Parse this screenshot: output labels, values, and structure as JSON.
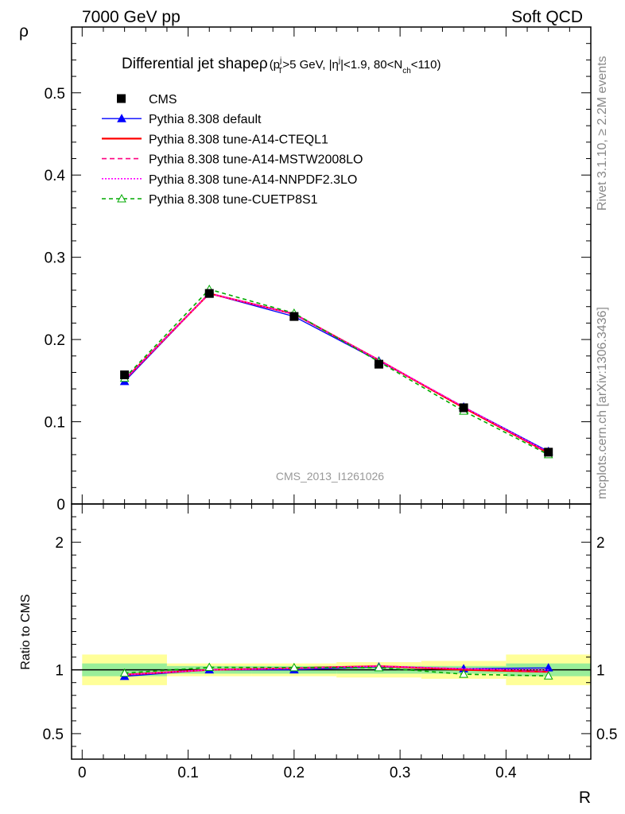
{
  "header": {
    "left": "7000 GeV pp",
    "right": "Soft QCD"
  },
  "side": {
    "rivet": "Rivet 3.1.10, ≥ 2.2M events",
    "mcplots": "mcplots.cern.ch [arXiv:1306.3436]"
  },
  "watermark": "CMS_2013_I1261026",
  "chart_data": {
    "type": "line",
    "title": {
      "main": "Differential jet shape",
      "rho": "ρ",
      "open": "(p",
      "pt_sup": "j",
      "pt_sub": "T",
      "cut1": ">5 GeV, |η",
      "eta_sup": "j",
      "cut2": "|<1.9, 80<N",
      "nch_sub": "ch",
      "cut3": "<110)"
    },
    "xlabel": "R",
    "ylabel": "ρ",
    "ratio_ylabel": "Ratio to CMS",
    "xlim": [
      -0.01,
      0.48
    ],
    "ylim": [
      0,
      0.58
    ],
    "ratio_ylim": [
      0.3,
      2.3
    ],
    "x_ticks": [
      {
        "v": 0,
        "label": "0"
      },
      {
        "v": 0.1,
        "label": "0.1"
      },
      {
        "v": 0.2,
        "label": "0.2"
      },
      {
        "v": 0.3,
        "label": "0.3"
      },
      {
        "v": 0.4,
        "label": "0.4"
      }
    ],
    "y_ticks": [
      {
        "v": 0,
        "label": "0"
      },
      {
        "v": 0.1,
        "label": "0.1"
      },
      {
        "v": 0.2,
        "label": "0.2"
      },
      {
        "v": 0.3,
        "label": "0.3"
      },
      {
        "v": 0.4,
        "label": "0.4"
      },
      {
        "v": 0.5,
        "label": "0.5"
      }
    ],
    "ratio_ticks": [
      {
        "v": 0.5,
        "label": "0.5"
      },
      {
        "v": 1,
        "label": "1"
      },
      {
        "v": 2,
        "label": "2"
      }
    ],
    "x": [
      0.04,
      0.12,
      0.2,
      0.28,
      0.36,
      0.44
    ],
    "bin_edges": [
      0,
      0.08,
      0.16,
      0.24,
      0.32,
      0.4,
      0.48
    ],
    "data": {
      "name": "CMS",
      "values": [
        0.157,
        0.256,
        0.228,
        0.17,
        0.117,
        0.063
      ]
    },
    "ratio_band_inner": [
      0.05,
      0.03,
      0.03,
      0.03,
      0.03,
      0.05
    ],
    "ratio_band_outer": [
      0.12,
      0.05,
      0.05,
      0.06,
      0.07,
      0.12
    ],
    "series": [
      {
        "name": "Pythia 8.308 default",
        "color": "#0000ff",
        "dash": "",
        "marker": "triangle-filled",
        "values": [
          0.149,
          0.256,
          0.228,
          0.174,
          0.118,
          0.064
        ]
      },
      {
        "name": "Pythia 8.308 tune-A14-CTEQL1",
        "color": "#ff0000",
        "dash": "",
        "marker": "none",
        "values": [
          0.151,
          0.256,
          0.231,
          0.175,
          0.117,
          0.062
        ]
      },
      {
        "name": "Pythia 8.308 tune-A14-MSTW2008LO",
        "color": "#ff0080",
        "dash": "6,4",
        "marker": "none",
        "values": [
          0.151,
          0.256,
          0.231,
          0.175,
          0.118,
          0.062
        ]
      },
      {
        "name": "Pythia 8.308 tune-A14-NNPDF2.3LO",
        "color": "#ff00ff",
        "dash": "2,2",
        "marker": "none",
        "values": [
          0.151,
          0.256,
          0.231,
          0.175,
          0.118,
          0.063
        ]
      },
      {
        "name": "Pythia 8.308 tune-CUETP8S1",
        "color": "#00aa00",
        "dash": "5,4",
        "marker": "triangle-open",
        "values": [
          0.153,
          0.261,
          0.232,
          0.173,
          0.113,
          0.06
        ]
      }
    ]
  }
}
